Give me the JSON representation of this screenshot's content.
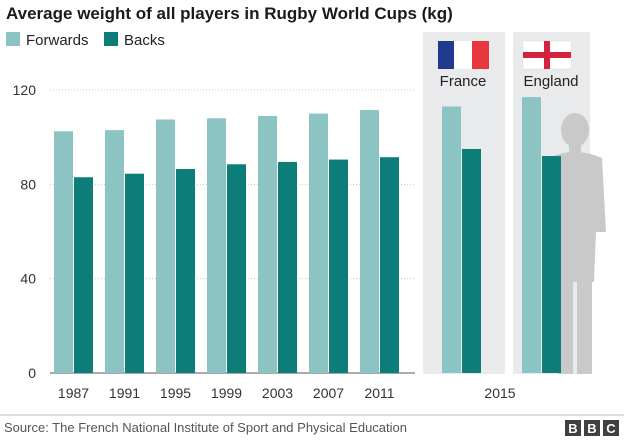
{
  "chart_data": {
    "type": "bar",
    "title": "Average weight of all players in Rugby World Cups (kg)",
    "xlabel": "",
    "ylabel": "",
    "ylim": [
      0,
      120
    ],
    "yticks": [
      0,
      40,
      80,
      120
    ],
    "grid": true,
    "legend": "top-left",
    "categories": [
      "1987",
      "1991",
      "1995",
      "1999",
      "2003",
      "2007",
      "2011"
    ],
    "series": [
      {
        "name": "Forwards",
        "color": "#8cc4c4",
        "values": [
          102.5,
          103,
          107.5,
          108,
          109,
          110,
          111.5
        ]
      },
      {
        "name": "Backs",
        "color": "#0c7d79",
        "values": [
          83,
          84.5,
          86.5,
          88.5,
          89.5,
          90.5,
          91.5
        ]
      }
    ],
    "panels_year": "2015",
    "panels": [
      {
        "team": "France",
        "forwards": 113,
        "backs": 95,
        "flag": "france-flag"
      },
      {
        "team": "England",
        "forwards": 117,
        "backs": 92,
        "flag": "england-flag"
      }
    ]
  },
  "footer": {
    "source": "Source: The French National Institute of Sport and Physical Education",
    "logo_letters": [
      "B",
      "B",
      "C"
    ]
  },
  "colors": {
    "forwards": "#8cc4c4",
    "backs": "#0c7d79",
    "panel_bg": "#e9eaec",
    "gridline": "#bbbbbb",
    "silhouette": "#c9c9c9"
  }
}
